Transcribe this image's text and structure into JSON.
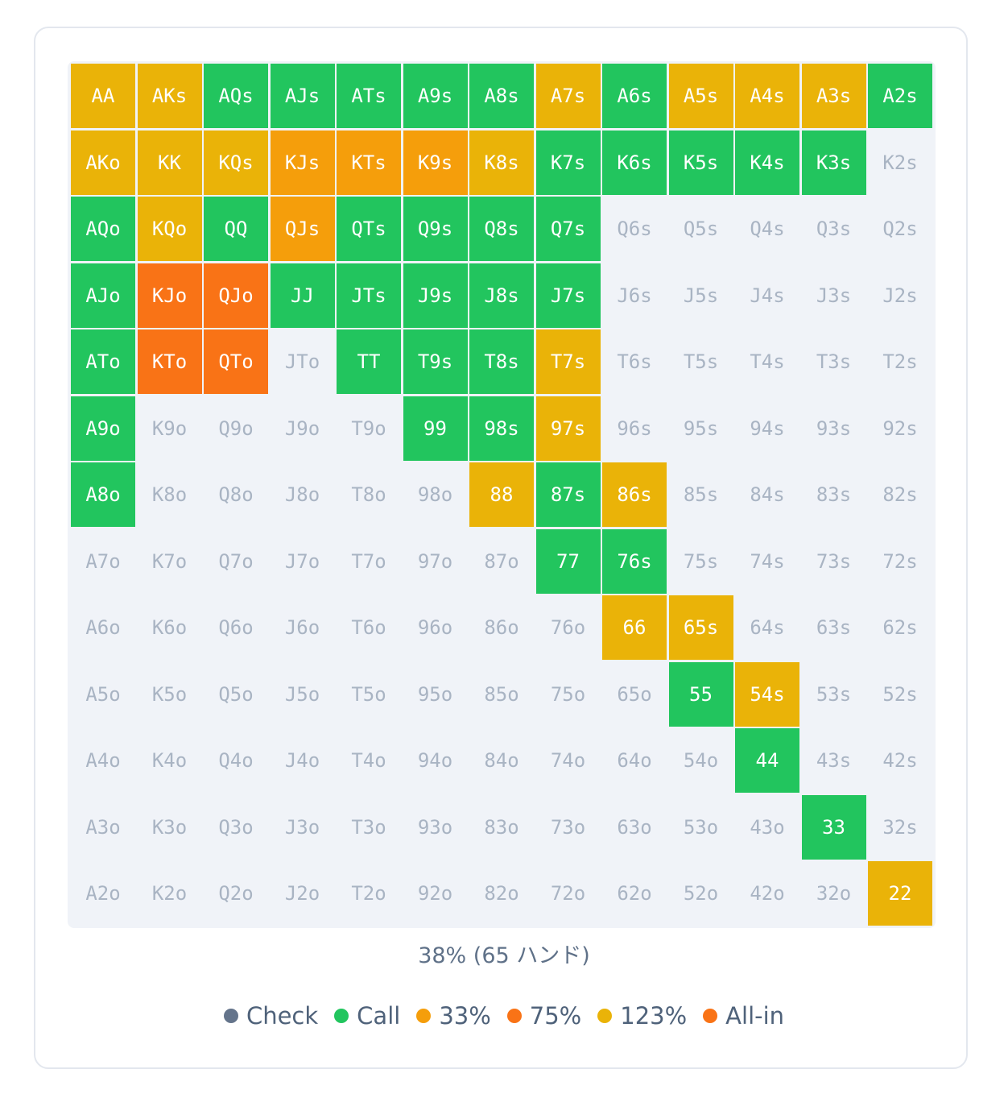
{
  "chart_data": {
    "type": "heatmap",
    "title": "",
    "ranks": [
      "A",
      "K",
      "Q",
      "J",
      "T",
      "9",
      "8",
      "7",
      "6",
      "5",
      "4",
      "3",
      "2"
    ],
    "rows": [
      [
        "AA",
        "AKs",
        "AQs",
        "AJs",
        "ATs",
        "A9s",
        "A8s",
        "A7s",
        "A6s",
        "A5s",
        "A4s",
        "A3s",
        "A2s"
      ],
      [
        "AKo",
        "KK",
        "KQs",
        "KJs",
        "KTs",
        "K9s",
        "K8s",
        "K7s",
        "K6s",
        "K5s",
        "K4s",
        "K3s",
        "K2s"
      ],
      [
        "AQo",
        "KQo",
        "QQ",
        "QJs",
        "QTs",
        "Q9s",
        "Q8s",
        "Q7s",
        "Q6s",
        "Q5s",
        "Q4s",
        "Q3s",
        "Q2s"
      ],
      [
        "AJo",
        "KJo",
        "QJo",
        "JJ",
        "JTs",
        "J9s",
        "J8s",
        "J7s",
        "J6s",
        "J5s",
        "J4s",
        "J3s",
        "J2s"
      ],
      [
        "ATo",
        "KTo",
        "QTo",
        "JTo",
        "TT",
        "T9s",
        "T8s",
        "T7s",
        "T6s",
        "T5s",
        "T4s",
        "T3s",
        "T2s"
      ],
      [
        "A9o",
        "K9o",
        "Q9o",
        "J9o",
        "T9o",
        "99",
        "98s",
        "97s",
        "96s",
        "95s",
        "94s",
        "93s",
        "92s"
      ],
      [
        "A8o",
        "K8o",
        "Q8o",
        "J8o",
        "T8o",
        "98o",
        "88",
        "87s",
        "86s",
        "85s",
        "84s",
        "83s",
        "82s"
      ],
      [
        "A7o",
        "K7o",
        "Q7o",
        "J7o",
        "T7o",
        "97o",
        "87o",
        "77",
        "76s",
        "75s",
        "74s",
        "73s",
        "72s"
      ],
      [
        "A6o",
        "K6o",
        "Q6o",
        "J6o",
        "T6o",
        "96o",
        "86o",
        "76o",
        "66",
        "65s",
        "64s",
        "63s",
        "62s"
      ],
      [
        "A5o",
        "K5o",
        "Q5o",
        "J5o",
        "T5o",
        "95o",
        "85o",
        "75o",
        "65o",
        "55",
        "54s",
        "53s",
        "52s"
      ],
      [
        "A4o",
        "K4o",
        "Q4o",
        "J4o",
        "T4o",
        "94o",
        "84o",
        "74o",
        "64o",
        "54o",
        "44",
        "43s",
        "42s"
      ],
      [
        "A3o",
        "K3o",
        "Q3o",
        "J3o",
        "T3o",
        "93o",
        "83o",
        "73o",
        "63o",
        "53o",
        "43o",
        "33",
        "32s"
      ],
      [
        "A2o",
        "K2o",
        "Q2o",
        "J2o",
        "T2o",
        "92o",
        "82o",
        "72o",
        "62o",
        "52o",
        "42o",
        "32o",
        "22"
      ]
    ],
    "actions": [
      [
        "123%",
        "123%",
        "Call",
        "Call",
        "Call",
        "Call",
        "Call",
        "123%",
        "Call",
        "123%",
        "123%",
        "123%",
        "Call"
      ],
      [
        "123%",
        "123%",
        "123%",
        "33%",
        "33%",
        "33%",
        "123%",
        "Call",
        "Call",
        "Call",
        "Call",
        "Call",
        ""
      ],
      [
        "Call",
        "123%",
        "Call",
        "33%",
        "Call",
        "Call",
        "Call",
        "Call",
        "",
        "",
        "",
        "",
        ""
      ],
      [
        "Call",
        "75%",
        "75%",
        "Call",
        "Call",
        "Call",
        "Call",
        "Call",
        "",
        "",
        "",
        "",
        ""
      ],
      [
        "Call",
        "75%",
        "75%",
        "",
        "Call",
        "Call",
        "Call",
        "123%",
        "",
        "",
        "",
        "",
        ""
      ],
      [
        "Call",
        "",
        "",
        "",
        "",
        "Call",
        "Call",
        "123%",
        "",
        "",
        "",
        "",
        ""
      ],
      [
        "Call",
        "",
        "",
        "",
        "",
        "",
        "123%",
        "Call",
        "123%",
        "",
        "",
        "",
        ""
      ],
      [
        "",
        "",
        "",
        "",
        "",
        "",
        "",
        "Call",
        "Call",
        "",
        "",
        "",
        ""
      ],
      [
        "",
        "",
        "",
        "",
        "",
        "",
        "",
        "",
        "123%",
        "123%",
        "",
        "",
        ""
      ],
      [
        "",
        "",
        "",
        "",
        "",
        "",
        "",
        "",
        "",
        "Call",
        "123%",
        "",
        ""
      ],
      [
        "",
        "",
        "",
        "",
        "",
        "",
        "",
        "",
        "",
        "",
        "Call",
        "",
        ""
      ],
      [
        "",
        "",
        "",
        "",
        "",
        "",
        "",
        "",
        "",
        "",
        "",
        "Call",
        ""
      ],
      [
        "",
        "",
        "",
        "",
        "",
        "",
        "",
        "",
        "",
        "",
        "",
        "",
        "123%"
      ]
    ],
    "legend": [
      {
        "label": "Check",
        "color": "#64748b"
      },
      {
        "label": "Call",
        "color": "#22c55e"
      },
      {
        "label": "33%",
        "color": "#f59e0b"
      },
      {
        "label": "75%",
        "color": "#f97316"
      },
      {
        "label": "123%",
        "color": "#eab308"
      },
      {
        "label": "All-in",
        "color": "#f97316"
      }
    ],
    "summary": "38% (65 ハンド)"
  },
  "colors": {
    "inactive_text": "#a9b4c3",
    "grid_bg": "#f0f3f8"
  }
}
